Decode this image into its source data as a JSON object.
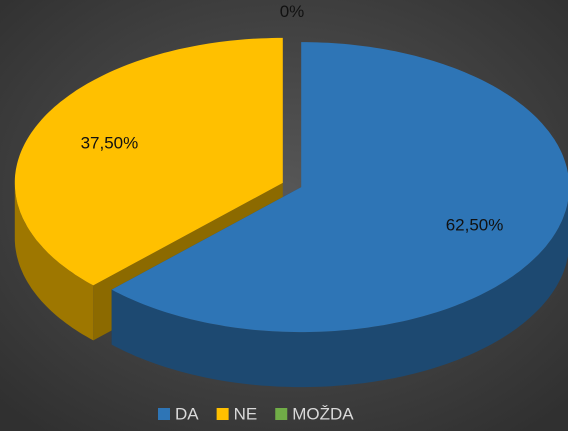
{
  "chart_data": {
    "type": "pie3d",
    "categories": [
      "DA",
      "NE",
      "MOŽDA"
    ],
    "values": [
      62.5,
      37.5,
      0
    ],
    "value_labels": [
      "62,50%",
      "37,50%",
      "0%"
    ],
    "colors": [
      "#2e75b6",
      "#ffc000",
      "#70ad47"
    ],
    "legend": "bottom"
  }
}
